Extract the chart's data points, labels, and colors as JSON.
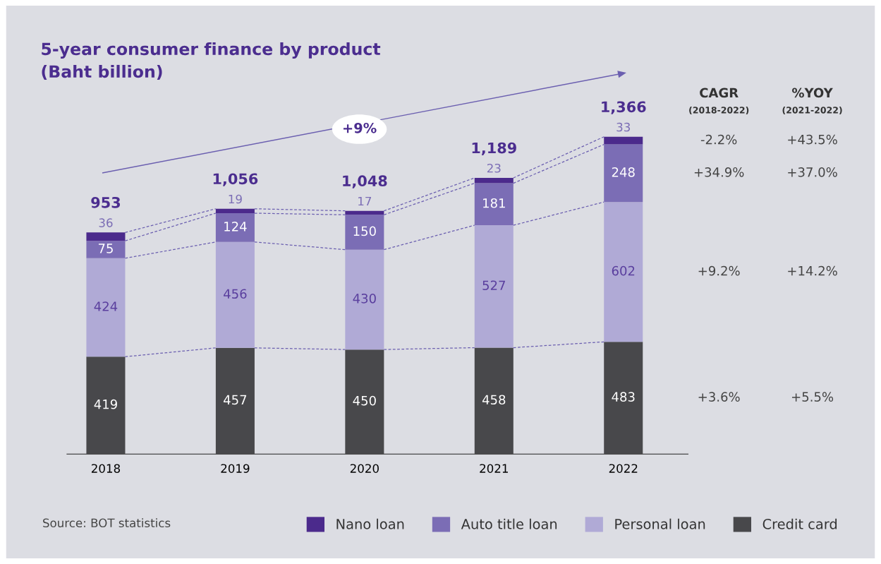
{
  "chart_data": {
    "type": "bar",
    "stacked": true,
    "title": "5-year consumer finance by product\n(Baht billion)",
    "categories": [
      "2018",
      "2019",
      "2020",
      "2021",
      "2022"
    ],
    "series": [
      {
        "name": "Credit card",
        "color": "#48484b",
        "values": [
          419,
          457,
          450,
          458,
          483
        ]
      },
      {
        "name": "Personal loan",
        "color": "#b0aad6",
        "values": [
          424,
          456,
          430,
          527,
          602
        ]
      },
      {
        "name": "Auto title loan",
        "color": "#7b6db5",
        "values": [
          75,
          124,
          150,
          181,
          248
        ]
      },
      {
        "name": "Nano loan",
        "color": "#4b2a8c",
        "values": [
          36,
          19,
          17,
          23,
          33
        ]
      }
    ],
    "data_labels": true,
    "totals": [
      "953",
      "1,056",
      "1,048",
      "1,189",
      "1,366"
    ],
    "legend": "bottom",
    "annotations": [
      "+9%",
      "CAGR",
      "(2018-2022)",
      "%YOY",
      "(2021-2022)",
      "+3.6%",
      "+5.5%",
      "+9.2%",
      "+14.2%",
      "+34.9%",
      "+37.0%",
      "-2.2%",
      "+43.5%",
      "Source: BOT statistics"
    ]
  }
}
